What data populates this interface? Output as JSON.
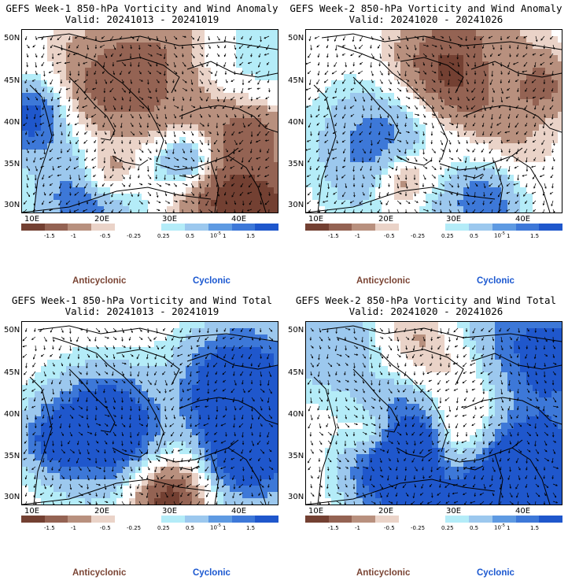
{
  "colors": {
    "anticyclonic": "#7a4434",
    "cyclonic": "#1a57d0",
    "bins": [
      "#734032",
      "#946353",
      "#b8907e",
      "#ead3c8",
      "#ffffff",
      "#ffffff",
      "#b4ecf8",
      "#9cc8ee",
      "#5e9ae2",
      "#3d78d8",
      "#1f57cc"
    ]
  },
  "panels": [
    {
      "title_line1": "GEFS Week-1 850-hPa Vorticity and Wind Anomaly",
      "title_line2": "Valid: 20241013 - 20241019",
      "seed": 3,
      "bias": 0.05
    },
    {
      "title_line1": "GEFS Week-2 850-hPa Vorticity and Wind Anomaly",
      "title_line2": "Valid: 20241020 - 20241026",
      "seed": 11,
      "bias": -0.05
    },
    {
      "title_line1": "GEFS Week-1 850-hPa Vorticity and Wind Total",
      "title_line2": "Valid: 20241013 - 20241019",
      "seed": 23,
      "bias": 0.0
    },
    {
      "title_line1": "GEFS Week-2 850-hPa Vorticity and Wind Total",
      "title_line2": "Valid: 20241020 - 20241026",
      "seed": 37,
      "bias": 0.02
    }
  ],
  "lat_labels": [
    "50N",
    "45N",
    "40N",
    "35N",
    "30N"
  ],
  "lon_labels": [
    "10E",
    "20E",
    "30E",
    "40E"
  ],
  "colorbar_labels": [
    "-1.5",
    "-1",
    "-0.5",
    "-0.25",
    "0.25",
    "0.5",
    "1",
    "1.5"
  ],
  "colorbar_unit": "10",
  "colorbar_unit_exp": "-5",
  "legend": {
    "anticyclonic": "Anticyclonic",
    "cyclonic": "Cyclonic"
  }
}
